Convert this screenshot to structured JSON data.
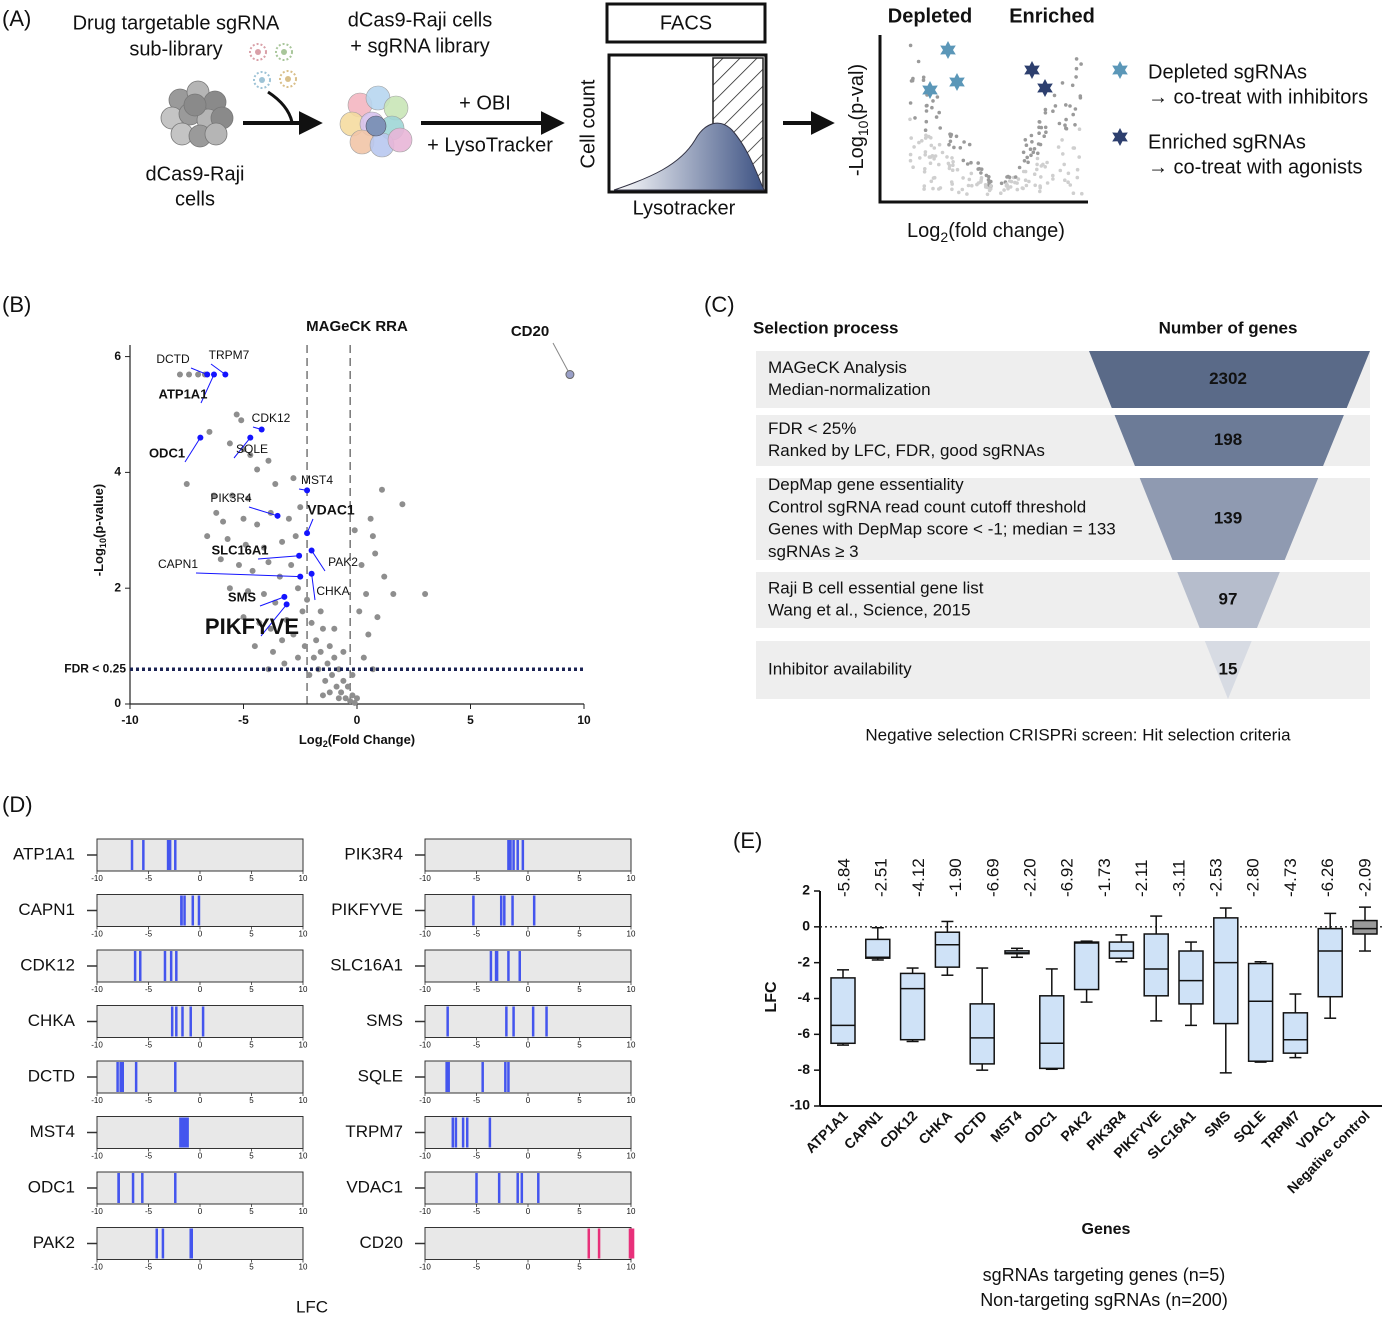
{
  "panel_a": {
    "label": "(A)",
    "library": [
      "Drug targetable sgRNA",
      "sub-library"
    ],
    "cells": [
      "dCas9-Raji",
      "cells"
    ],
    "transduced": [
      "dCas9-Raji cells",
      "+ sgRNA library"
    ],
    "treatment": [
      "+ OBI",
      "+ LysoTracker"
    ],
    "facs": "FACS",
    "facs_y": "Cell count",
    "facs_x": "Lysotracker",
    "volcano_left": "Depleted",
    "volcano_right": "Enriched",
    "volcano_y": {
      "base": "-Log",
      "sub": "10",
      "rest": "(p-val)"
    },
    "volcano_x": {
      "base": "Log",
      "sub": "2",
      "rest": "(fold change)"
    },
    "legend": [
      {
        "lines": [
          "Depleted sgRNAs",
          "→ co-treat with inhibitors"
        ],
        "color": "#5b97b8"
      },
      {
        "lines": [
          "Enriched sgRNAs",
          "→ co-treat with agonists"
        ],
        "color": "#2d3f6e"
      }
    ]
  },
  "panel_c": {
    "label": "(C)",
    "headers": [
      "Selection process",
      "Number of genes"
    ],
    "rows": [
      {
        "criteria": [
          "MAGeCK Analysis",
          "Median-normalization"
        ],
        "count": 2302
      },
      {
        "criteria": [
          "FDR < 25%",
          "Ranked by LFC, FDR, good sgRNAs"
        ],
        "count": 198
      },
      {
        "criteria": [
          "DepMap gene essentiality",
          "Control sgRNA read count cutoff threshold",
          "Genes with DepMap score < -1; median  = 133",
          "sgRNAs ≥ 3"
        ],
        "count": 139
      },
      {
        "criteria": [
          "Raji B cell essential gene list",
          "Wang et al., Science, 2015"
        ],
        "count": 97
      },
      {
        "criteria": [
          "Inhibitor  availability"
        ],
        "count": 15
      }
    ],
    "caption": "Negative selection CRISPRi screen: Hit selection criteria"
  },
  "chart_data": [
    {
      "type": "volcano",
      "panel_label": "(B)",
      "title": "MAGeCK RRA",
      "xlabel": {
        "base": "Log",
        "sub": "2",
        "rest": "(Fold Change)"
      },
      "ylabel": {
        "base": "-Log",
        "sub": "10",
        "rest": "(p-value)"
      },
      "xlim": [
        -10,
        10
      ],
      "xticks": [
        -10,
        -5,
        0,
        5,
        10
      ],
      "ylim": [
        0,
        6.2
      ],
      "yticks": [
        0,
        2,
        4,
        6
      ],
      "points": {
        "color": "#8e8e8e",
        "x": [
          -7.8,
          -7.4,
          -7.0,
          -6.7,
          -5.3,
          -5.1,
          -6.5,
          -5.6,
          -5.0,
          -4.7,
          -3.9,
          -4.4,
          -7.5,
          -6.3,
          -5.5,
          -4.8,
          -3.6,
          -2.8,
          -6.2,
          -5.9,
          -5.0,
          -4.4,
          -3.8,
          -3.0,
          -2.5,
          -6.6,
          -5.7,
          -4.9,
          -4.1,
          -3.3,
          -2.7,
          -6.0,
          -5.2,
          -4.6,
          -3.9,
          -3.4,
          -2.9,
          -5.6,
          -4.8,
          -4.1,
          -3.6,
          -2.6,
          -5.0,
          -4.3,
          -3.8,
          -3.1,
          -2.4,
          -4.5,
          -3.7,
          -3.3,
          -2.8,
          -2.3,
          -3.9,
          -3.2,
          -2.6,
          -2.0,
          -1.8,
          -1.6,
          -1.5,
          -1.3,
          -1.2,
          -1.1,
          -1.0,
          -0.9,
          -0.8,
          -0.7,
          -0.6,
          -0.5,
          -0.4,
          -0.3,
          -0.2,
          -0.1,
          0.0,
          -1.4,
          -1.7,
          -1.9,
          -2.1,
          -1.2,
          -0.8,
          -1.5,
          -2.2,
          -1.6,
          -1.0,
          -0.6,
          -0.2,
          0.3,
          0.5,
          0.7,
          0.9,
          0.4,
          1.2,
          0.8,
          1.6,
          0.6,
          1.1,
          0.7,
          2.0,
          3.0,
          0.2,
          -0.1,
          0.1
        ],
        "y": [
          5.69,
          5.69,
          5.69,
          5.69,
          5.0,
          4.9,
          4.7,
          4.5,
          4.4,
          4.3,
          4.2,
          4.05,
          3.8,
          3.6,
          3.6,
          3.55,
          3.8,
          3.9,
          3.3,
          3.15,
          3.2,
          3.1,
          3.3,
          3.2,
          3.4,
          2.9,
          2.85,
          2.75,
          2.7,
          2.8,
          2.9,
          2.5,
          2.4,
          2.3,
          2.45,
          2.2,
          2.4,
          2.0,
          1.95,
          1.9,
          1.75,
          2.0,
          1.5,
          1.4,
          1.3,
          1.45,
          1.6,
          1.0,
          0.9,
          1.1,
          1.2,
          1.0,
          0.6,
          0.7,
          0.8,
          1.4,
          1.1,
          0.9,
          1.3,
          0.7,
          1.0,
          0.5,
          0.8,
          0.3,
          0.6,
          0.2,
          0.4,
          0.1,
          0.3,
          0.05,
          0.15,
          0.02,
          0.1,
          0.4,
          0.6,
          0.8,
          0.5,
          0.2,
          0.1,
          0.15,
          1.8,
          1.6,
          1.3,
          0.9,
          0.5,
          0.8,
          1.2,
          0.6,
          1.5,
          1.9,
          2.2,
          2.6,
          1.9,
          3.2,
          3.7,
          2.9,
          3.45,
          1.9,
          2.4,
          3.0,
          1.6
        ]
      },
      "genes": {
        "color": "#1414ff",
        "labels": [
          "DCTD",
          "TRPM7",
          "ATP1A1",
          "CDK12",
          "SQLE",
          "ODC1",
          "MST4",
          "PIK3R4",
          "VDAC1",
          "SLC16A1",
          "PAK2",
          "CAPN1",
          "CHKA",
          "SMS",
          "PIKFYVE"
        ],
        "x": [
          -6.6,
          -5.8,
          -6.3,
          -4.2,
          -4.7,
          -6.9,
          -2.2,
          -3.5,
          -2.2,
          -2.55,
          -2.0,
          -2.5,
          -2.0,
          -3.2,
          -3.1
        ],
        "y": [
          5.69,
          5.69,
          5.69,
          4.74,
          4.6,
          4.6,
          3.69,
          3.25,
          2.95,
          2.56,
          2.65,
          2.2,
          2.25,
          1.85,
          1.72
        ]
      },
      "outlier": {
        "label": "CD20",
        "x": 9.38,
        "y": 5.69,
        "color": "#ee1111"
      },
      "threshold": {
        "label": "FDR < 0.25",
        "value": 0.6
      },
      "cutoffs": [
        -2.2,
        -0.3
      ]
    },
    {
      "type": "strip",
      "panel_label": "(D)",
      "xlabel": "LFC",
      "xlim": [
        -10,
        10
      ],
      "xticks": [
        -10,
        -5,
        0,
        5,
        10
      ],
      "categories": [
        "ATP1A1",
        "CAPN1",
        "CDK12",
        "CHKA",
        "DCTD",
        "MST4",
        "ODC1",
        "PAK2",
        "PIK3R4",
        "PIKFYVE",
        "SLC16A1",
        "SMS",
        "SQLE",
        "TRPM7",
        "VDAC1",
        "CD20"
      ],
      "values": [
        [
          -6.6,
          -5.5,
          -3.1,
          -2.9,
          -2.4
        ],
        [
          -1.8,
          -1.8,
          -1.5,
          -0.7,
          -0.1
        ],
        [
          -6.3,
          -5.8,
          -3.4,
          -2.8,
          -2.3
        ],
        [
          -2.7,
          -2.3,
          -1.7,
          -0.9,
          0.3
        ],
        [
          -8.0,
          -7.7,
          -7.5,
          -6.2,
          -2.4
        ],
        [
          -1.9,
          -1.7,
          -1.5,
          -1.4,
          -1.2
        ],
        [
          -7.9,
          -7.9,
          -6.5,
          -5.6,
          -2.4
        ],
        [
          -4.2,
          -3.6,
          -0.9,
          -0.8,
          -0.8
        ],
        [
          -1.9,
          -1.7,
          -1.4,
          -1.0,
          -0.5
        ],
        [
          -5.3,
          -2.6,
          -2.3,
          -1.5,
          0.6
        ],
        [
          -3.6,
          -3.1,
          -3.0,
          -1.9,
          -0.8
        ],
        [
          -7.8,
          -2.1,
          -1.4,
          0.5,
          1.8
        ],
        [
          -7.9,
          -7.7,
          -4.4,
          -2.2,
          -1.9
        ],
        [
          -7.3,
          -7.0,
          -6.3,
          -5.9,
          -3.7
        ],
        [
          -5.0,
          -2.8,
          -1.0,
          -0.6,
          1.0
        ],
        [
          5.9,
          6.9,
          9.9,
          10.0,
          10.2
        ]
      ],
      "colors": [
        "#4455ee",
        "#4455ee",
        "#4455ee",
        "#4455ee",
        "#4455ee",
        "#4455ee",
        "#4455ee",
        "#4455ee",
        "#4455ee",
        "#4455ee",
        "#4455ee",
        "#4455ee",
        "#4455ee",
        "#4455ee",
        "#4455ee",
        "#e8317a"
      ]
    },
    {
      "type": "box",
      "panel_label": "(E)",
      "xlabel": "Genes",
      "ylabel": "LFC",
      "ylim": [
        -10,
        2
      ],
      "yticks": [
        2,
        0,
        -2,
        -4,
        -6,
        -8,
        -10
      ],
      "reference_line": 0,
      "categories": [
        "ATP1A1",
        "CAPN1",
        "CDK12",
        "CHKA",
        "DCTD",
        "MST4",
        "ODC1",
        "PAK2",
        "PIK3R4",
        "PIKFYVE",
        "SLC16A1",
        "SMS",
        "SQLE",
        "TRPM7",
        "VDAC1",
        "Negative control"
      ],
      "whisker_low": [
        -6.6,
        -1.85,
        -6.4,
        -2.7,
        -8.0,
        -1.7,
        -7.95,
        -4.2,
        -1.95,
        -5.25,
        -5.5,
        -8.15,
        -7.55,
        -7.3,
        -5.1,
        -1.35
      ],
      "q1": [
        -6.5,
        -1.75,
        -6.3,
        -2.25,
        -7.65,
        -1.5,
        -7.9,
        -3.5,
        -1.75,
        -3.85,
        -4.3,
        -5.4,
        -7.5,
        -7.05,
        -3.9,
        -0.4
      ],
      "median": [
        -5.5,
        -1.7,
        -3.45,
        -1.0,
        -6.2,
        -1.45,
        -6.5,
        -0.9,
        -1.35,
        -2.35,
        -3.0,
        -2.0,
        -4.15,
        -6.3,
        -1.35,
        -0.1
      ],
      "q3": [
        -2.85,
        -0.7,
        -2.6,
        -0.3,
        -4.3,
        -1.34,
        -3.85,
        -0.85,
        -0.85,
        -0.4,
        -1.35,
        0.5,
        -2.05,
        -4.8,
        -0.1,
        0.35
      ],
      "whisker_high": [
        -2.4,
        -0.05,
        -2.3,
        0.3,
        -2.3,
        -1.2,
        -2.35,
        -0.8,
        -0.45,
        0.6,
        -0.85,
        1.05,
        -1.95,
        -3.75,
        0.75,
        1.1
      ],
      "annotations": [
        "-5.84",
        "-2.51",
        "-4.12",
        "-1.90",
        "-6.69",
        "-2.20",
        "-6.92",
        "-1.73",
        "-2.11",
        "-3.11",
        "-2.53",
        "-2.80",
        "-4.73",
        "-6.26",
        "-2.09",
        null
      ],
      "colors": [
        "#cfe2f7",
        "#cfe2f7",
        "#cfe2f7",
        "#cfe2f7",
        "#cfe2f7",
        "#cfe2f7",
        "#cfe2f7",
        "#cfe2f7",
        "#cfe2f7",
        "#cfe2f7",
        "#cfe2f7",
        "#cfe2f7",
        "#cfe2f7",
        "#cfe2f7",
        "#cfe2f7",
        "#9a9a9a"
      ],
      "footnote": [
        "sgRNAs targeting genes (n=5)",
        "Non-targeting sgRNAs (n=200)"
      ]
    }
  ]
}
